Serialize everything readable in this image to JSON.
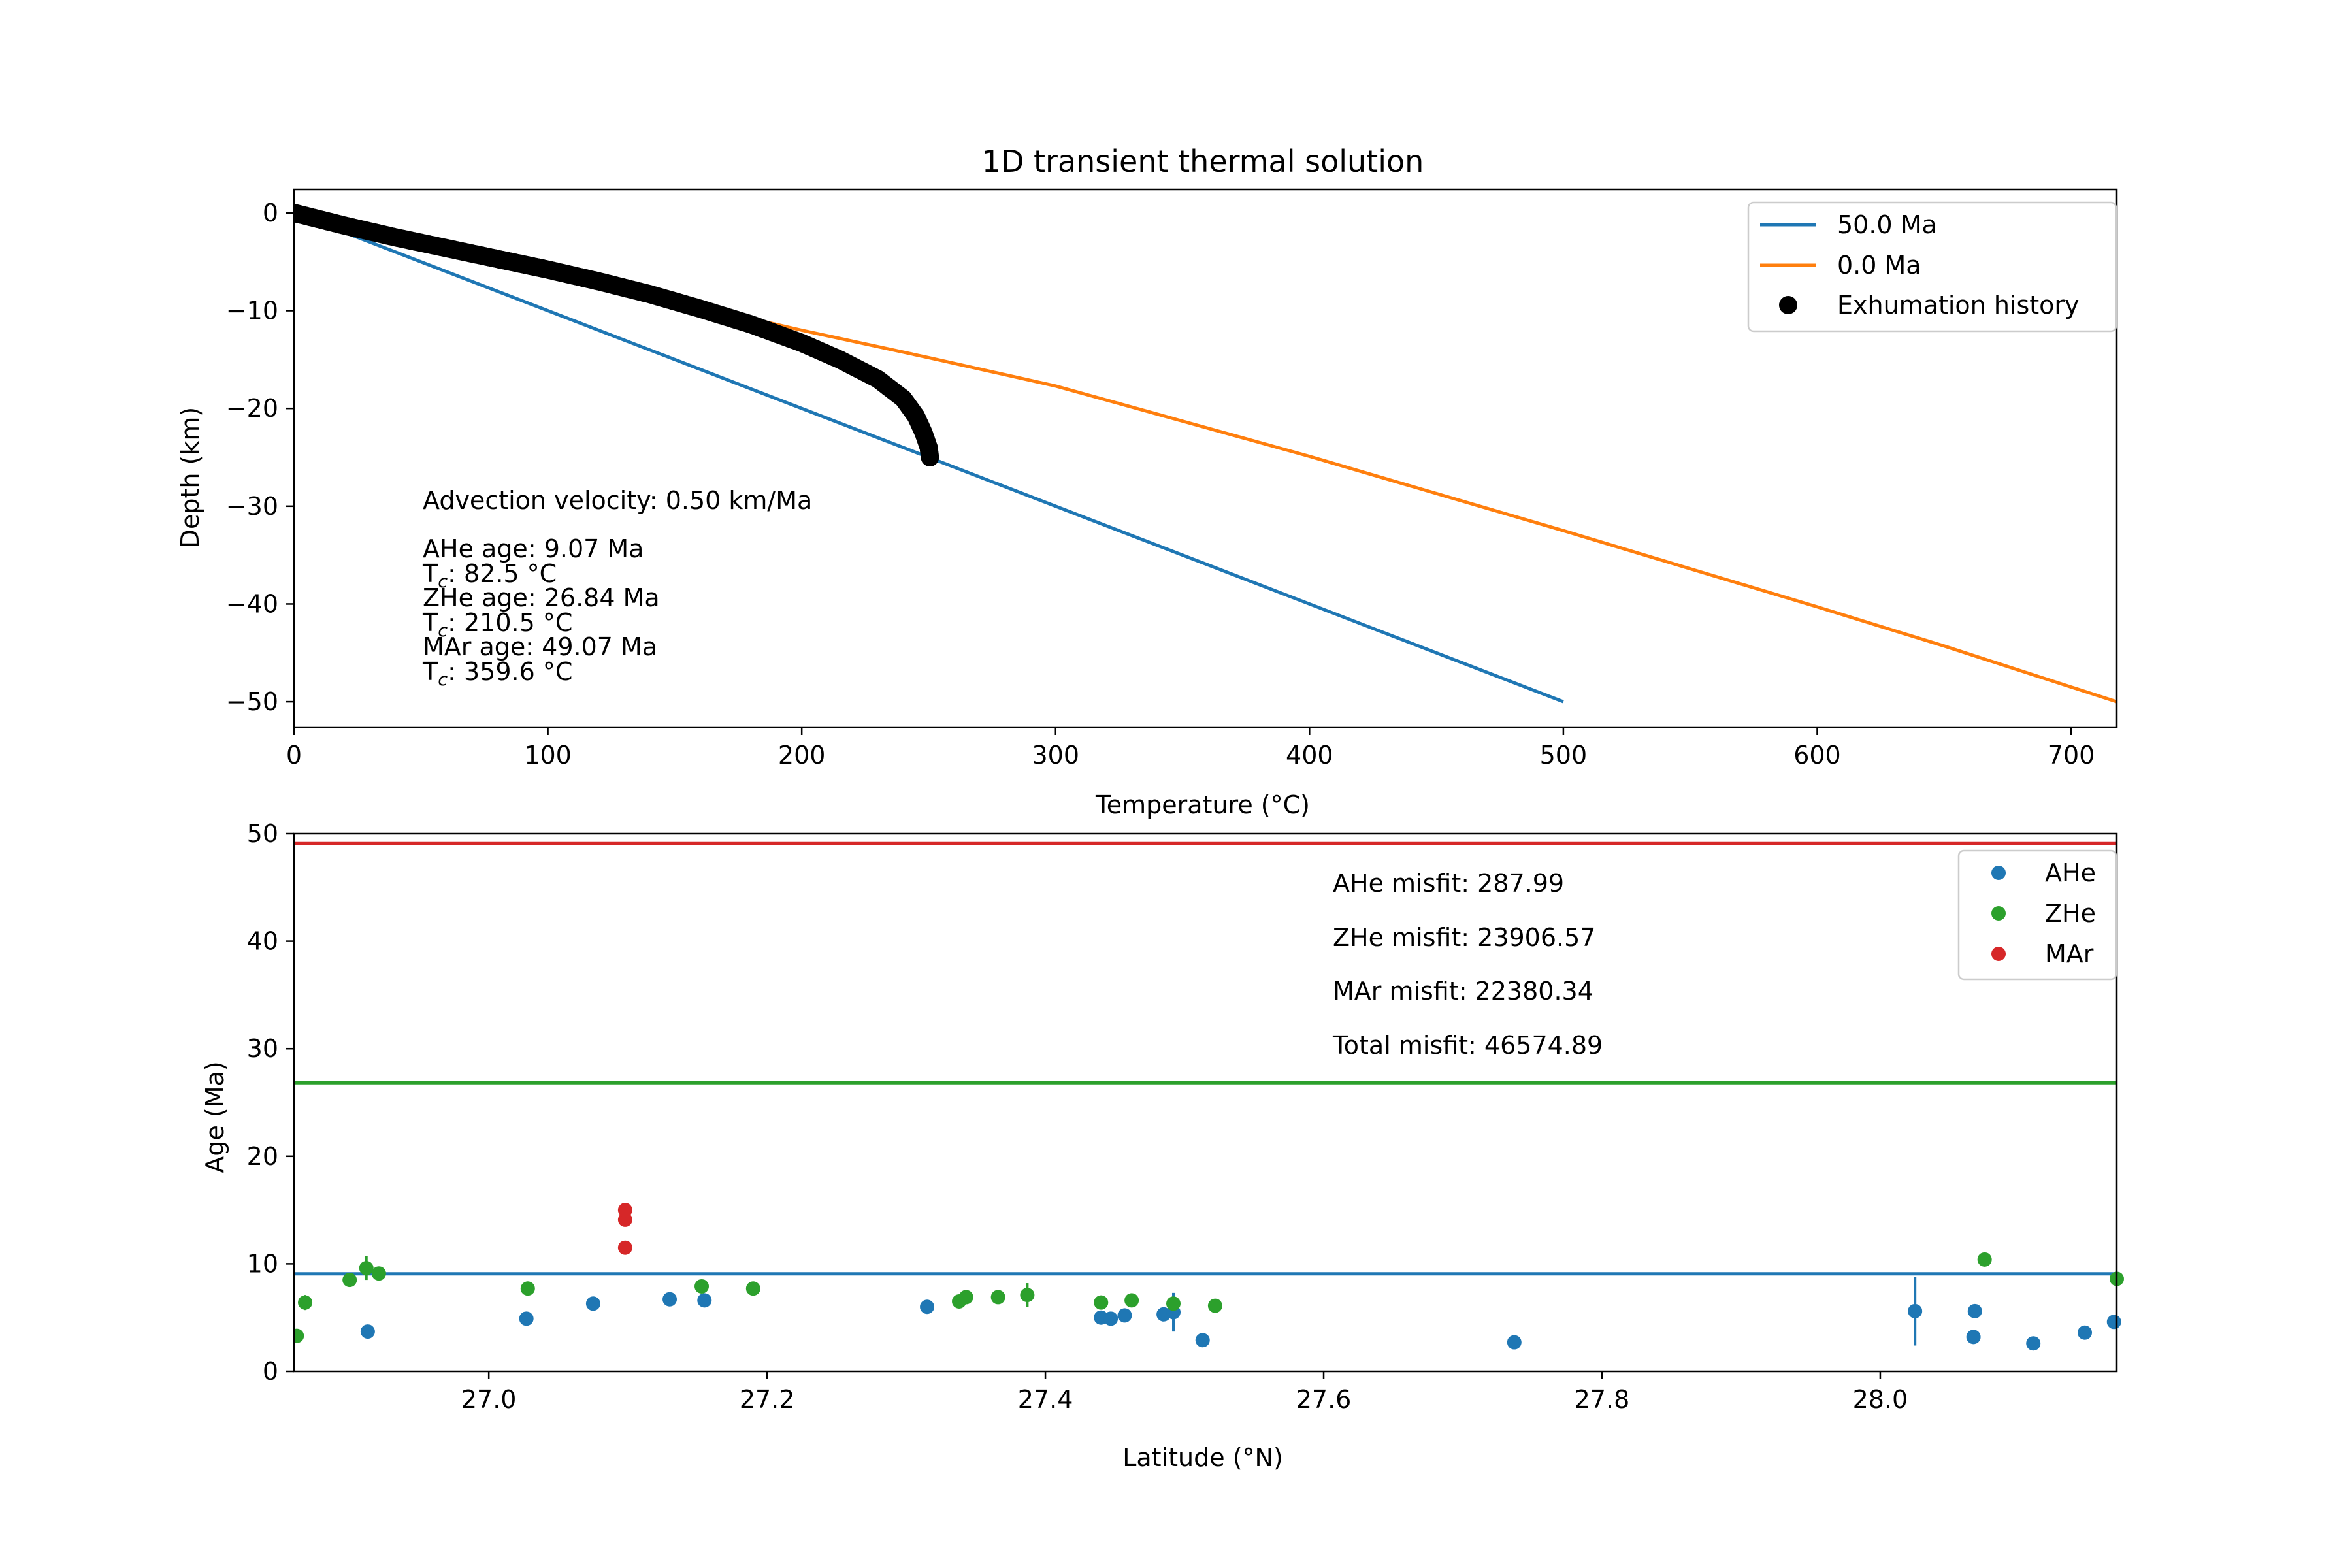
{
  "figure": {
    "title": "1D transient thermal solution"
  },
  "chart_data": [
    {
      "type": "line",
      "title": "1D transient thermal solution",
      "xlabel": "Temperature (°C)",
      "ylabel": "Depth (km)",
      "xlim": [
        0,
        718
      ],
      "ylim": [
        -52.6,
        2.4
      ],
      "xticks": [
        0,
        100,
        200,
        300,
        400,
        500,
        600,
        700
      ],
      "xtick_labels": [
        "0",
        "100",
        "200",
        "300",
        "400",
        "500",
        "600",
        "700"
      ],
      "yticks": [
        0,
        -10,
        -20,
        -30,
        -40,
        -50
      ],
      "ytick_labels": [
        "0",
        "−10",
        "−20",
        "−30",
        "−40",
        "−50"
      ],
      "grid": false,
      "legend_position": "top-right",
      "series": [
        {
          "name": "50.0 Ma",
          "color": "#1f77b4",
          "x": [
            0,
            500
          ],
          "y": [
            0,
            -50
          ]
        },
        {
          "name": "0.0 Ma",
          "color": "#ff7f0e",
          "x": [
            0,
            20,
            50,
            100,
            150,
            200,
            250,
            300,
            350,
            400,
            450,
            500,
            550,
            600,
            650,
            700,
            718
          ],
          "y": [
            0,
            -1.1,
            -2.9,
            -5.9,
            -9.0,
            -12.0,
            -14.8,
            -17.7,
            -21.3,
            -24.9,
            -28.7,
            -32.5,
            -36.4,
            -40.3,
            -44.3,
            -48.5,
            -50
          ]
        },
        {
          "name": "Exhumation history",
          "kind": "markers",
          "color": "#000000",
          "x": [
            0,
            20,
            40,
            60,
            80,
            100,
            120,
            140,
            160,
            180,
            200,
            215,
            230,
            240,
            245,
            248,
            250,
            250.5
          ],
          "y": [
            0,
            -1.3,
            -2.5,
            -3.6,
            -4.7,
            -5.8,
            -7.0,
            -8.3,
            -9.8,
            -11.4,
            -13.3,
            -15.0,
            -17.0,
            -19.0,
            -20.8,
            -22.5,
            -24.0,
            -25.0
          ]
        }
      ],
      "annotations": {
        "velocity": "Advection velocity: 0.50 km/Ma",
        "ahe_age": "AHe age: 9.07 Ma",
        "ahe_tc": "AHe T: 82.5 °C",
        "zhe_age": "ZHe age: 26.84 Ma",
        "zhe_tc": "ZHe T: 210.5 °C",
        "mar_age": "MAr age: 49.07 Ma",
        "mar_tc": "MAr T: 359.6 °C",
        "tc_label_main": "T",
        "tc_label_sub": "c"
      }
    },
    {
      "type": "scatter",
      "xlabel": "Latitude (°N)",
      "ylabel": "Age (Ma)",
      "xlim": [
        26.86,
        28.17
      ],
      "ylim": [
        0,
        50
      ],
      "xticks": [
        27.0,
        27.2,
        27.4,
        27.6,
        27.8,
        28.0
      ],
      "xtick_labels": [
        "27.0",
        "27.2",
        "27.4",
        "27.6",
        "27.8",
        "28.0"
      ],
      "yticks": [
        0,
        10,
        20,
        30,
        40,
        50
      ],
      "ytick_labels": [
        "0",
        "10",
        "20",
        "30",
        "40",
        "50"
      ],
      "grid": false,
      "legend_position": "top-right",
      "hlines": [
        {
          "value": 49.07,
          "color": "#d62728"
        },
        {
          "value": 26.84,
          "color": "#2ca02c"
        },
        {
          "value": 9.07,
          "color": "#1f77b4"
        }
      ],
      "series": [
        {
          "name": "AHe",
          "color": "#1f77b4",
          "points": [
            {
              "x": 26.913,
              "y": 3.7,
              "err": 0
            },
            {
              "x": 27.027,
              "y": 4.9,
              "err": 0
            },
            {
              "x": 27.075,
              "y": 6.3,
              "err": 0
            },
            {
              "x": 27.13,
              "y": 6.7,
              "err": 0
            },
            {
              "x": 27.155,
              "y": 6.6,
              "err": 0
            },
            {
              "x": 27.315,
              "y": 6.0,
              "err": 0
            },
            {
              "x": 27.44,
              "y": 5.0,
              "err": 0
            },
            {
              "x": 27.447,
              "y": 4.9,
              "err": 0
            },
            {
              "x": 27.457,
              "y": 5.2,
              "err": 0
            },
            {
              "x": 27.485,
              "y": 5.3,
              "err": 0
            },
            {
              "x": 27.492,
              "y": 5.5,
              "err": 1.8
            },
            {
              "x": 27.513,
              "y": 2.9,
              "err": 0
            },
            {
              "x": 27.737,
              "y": 2.7,
              "err": 0
            },
            {
              "x": 28.025,
              "y": 5.6,
              "err": 3.2
            },
            {
              "x": 28.067,
              "y": 3.2,
              "err": 0
            },
            {
              "x": 28.068,
              "y": 5.6,
              "err": 0.6
            },
            {
              "x": 28.11,
              "y": 2.6,
              "err": 0
            },
            {
              "x": 28.147,
              "y": 3.6,
              "err": 0
            },
            {
              "x": 28.168,
              "y": 4.6,
              "err": 0
            }
          ]
        },
        {
          "name": "ZHe",
          "color": "#2ca02c",
          "points": [
            {
              "x": 26.862,
              "y": 3.3,
              "err": 0
            },
            {
              "x": 26.868,
              "y": 6.4,
              "err": 0.7
            },
            {
              "x": 26.9,
              "y": 8.5,
              "err": 0
            },
            {
              "x": 26.912,
              "y": 9.6,
              "err": 1.1
            },
            {
              "x": 26.921,
              "y": 9.1,
              "err": 0
            },
            {
              "x": 27.028,
              "y": 7.7,
              "err": 0
            },
            {
              "x": 27.153,
              "y": 7.9,
              "err": 0
            },
            {
              "x": 27.19,
              "y": 7.7,
              "err": 0
            },
            {
              "x": 27.338,
              "y": 6.5,
              "err": 0
            },
            {
              "x": 27.343,
              "y": 6.9,
              "err": 0
            },
            {
              "x": 27.366,
              "y": 6.9,
              "err": 0
            },
            {
              "x": 27.387,
              "y": 7.1,
              "err": 1.1
            },
            {
              "x": 27.44,
              "y": 6.4,
              "err": 0
            },
            {
              "x": 27.462,
              "y": 6.6,
              "err": 0
            },
            {
              "x": 27.492,
              "y": 6.3,
              "err": 0
            },
            {
              "x": 27.522,
              "y": 6.1,
              "err": 0
            },
            {
              "x": 28.075,
              "y": 10.4,
              "err": 0
            },
            {
              "x": 28.17,
              "y": 8.6,
              "err": 0
            }
          ]
        },
        {
          "name": "MAr",
          "color": "#d62728",
          "points": [
            {
              "x": 27.098,
              "y": 11.5,
              "err": 0
            },
            {
              "x": 27.098,
              "y": 14.1,
              "err": 0
            },
            {
              "x": 27.098,
              "y": 15.0,
              "err": 0
            }
          ]
        }
      ],
      "annotations": {
        "ahe_misfit": "AHe misfit: 287.99",
        "zhe_misfit": "ZHe misfit: 23906.57",
        "mar_misfit": "MAr misfit: 22380.34",
        "total_misfit": "Total misfit: 46574.89"
      }
    }
  ]
}
